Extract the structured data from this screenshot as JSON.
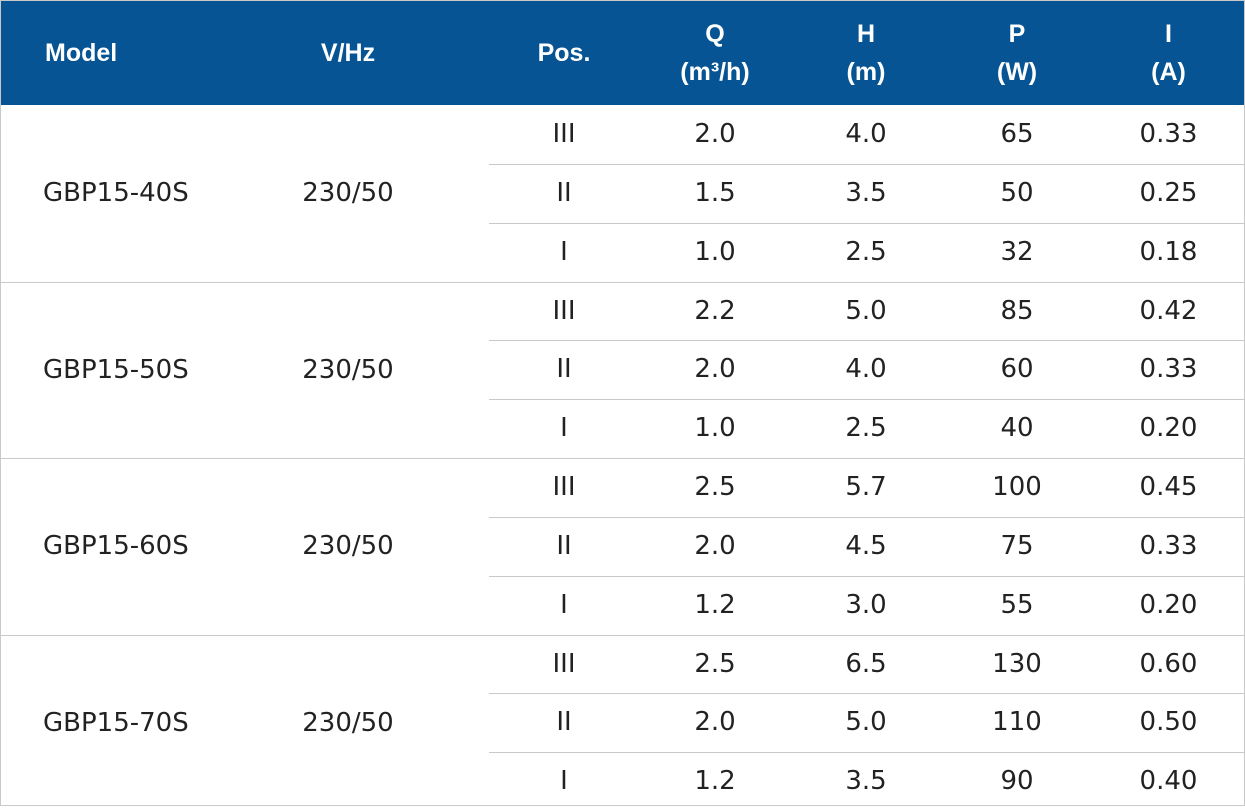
{
  "headers": {
    "model": "Model",
    "vhz": "V/Hz",
    "pos": "Pos.",
    "q": {
      "symbol": "Q",
      "unit": "(m³/h)"
    },
    "h": {
      "symbol": "H",
      "unit": "(m)"
    },
    "p": {
      "symbol": "P",
      "unit": "(W)"
    },
    "i": {
      "symbol": "I",
      "unit": "(A)"
    }
  },
  "colors": {
    "header_bg": "#065494",
    "header_text": "#ffffff",
    "grid": "#c9c9c9",
    "body_text": "#222222"
  },
  "groups": [
    {
      "model": "GBP15-40S",
      "vhz": "230/50",
      "rows": [
        {
          "pos": "III",
          "q": "2.0",
          "h": "4.0",
          "p": "65",
          "i": "0.33"
        },
        {
          "pos": "II",
          "q": "1.5",
          "h": "3.5",
          "p": "50",
          "i": "0.25"
        },
        {
          "pos": "I",
          "q": "1.0",
          "h": "2.5",
          "p": "32",
          "i": "0.18"
        }
      ]
    },
    {
      "model": "GBP15-50S",
      "vhz": "230/50",
      "rows": [
        {
          "pos": "III",
          "q": "2.2",
          "h": "5.0",
          "p": "85",
          "i": "0.42"
        },
        {
          "pos": "II",
          "q": "2.0",
          "h": "4.0",
          "p": "60",
          "i": "0.33"
        },
        {
          "pos": "I",
          "q": "1.0",
          "h": "2.5",
          "p": "40",
          "i": "0.20"
        }
      ]
    },
    {
      "model": "GBP15-60S",
      "vhz": "230/50",
      "rows": [
        {
          "pos": "III",
          "q": "2.5",
          "h": "5.7",
          "p": "100",
          "i": "0.45"
        },
        {
          "pos": "II",
          "q": "2.0",
          "h": "4.5",
          "p": "75",
          "i": "0.33"
        },
        {
          "pos": "I",
          "q": "1.2",
          "h": "3.0",
          "p": "55",
          "i": "0.20"
        }
      ]
    },
    {
      "model": "GBP15-70S",
      "vhz": "230/50",
      "rows": [
        {
          "pos": "III",
          "q": "2.5",
          "h": "6.5",
          "p": "130",
          "i": "0.60"
        },
        {
          "pos": "II",
          "q": "2.0",
          "h": "5.0",
          "p": "110",
          "i": "0.50"
        },
        {
          "pos": "I",
          "q": "1.2",
          "h": "3.5",
          "p": "90",
          "i": "0.40"
        }
      ]
    }
  ]
}
